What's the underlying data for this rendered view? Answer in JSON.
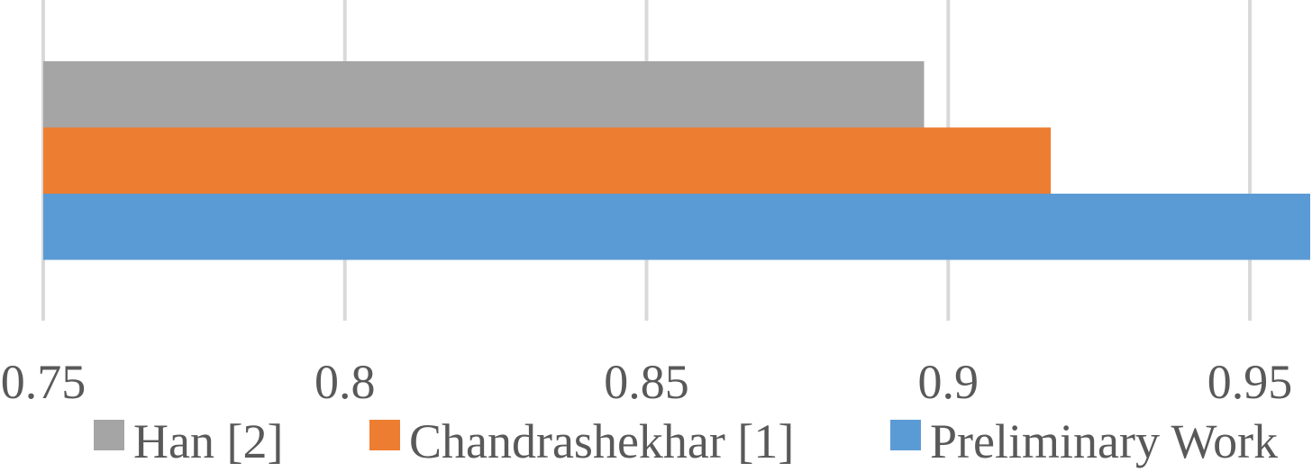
{
  "chart_data": {
    "type": "bar",
    "orientation": "horizontal",
    "title": "",
    "xlabel": "",
    "ylabel": "",
    "categories": [
      ""
    ],
    "series": [
      {
        "name": "Han [2]",
        "values": [
          0.896
        ],
        "color": "#A5A5A5"
      },
      {
        "name": "Chandrashekhar [1]",
        "values": [
          0.917
        ],
        "color": "#ED7D31"
      },
      {
        "name": "Preliminary Work",
        "values": [
          0.96
        ],
        "color": "#5B9BD5"
      }
    ],
    "xlim": [
      0.75,
      0.96
    ],
    "xticks": [
      "0.75",
      "0.8",
      "0.85",
      "0.9",
      "0.95"
    ],
    "grid": "vertical",
    "legend_position": "bottom"
  }
}
